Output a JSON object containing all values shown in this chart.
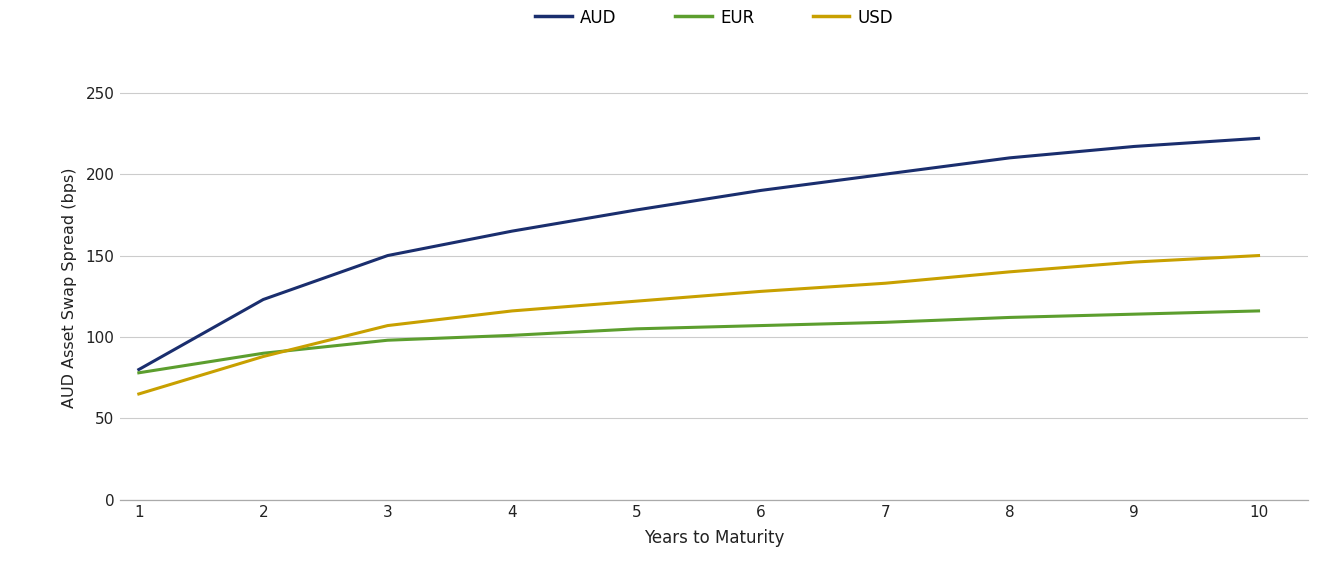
{
  "title": "",
  "xlabel": "Years to Maturity",
  "ylabel": "AUD Asset Swap Spread (bps)",
  "x": [
    1,
    2,
    3,
    4,
    5,
    6,
    7,
    8,
    9,
    10
  ],
  "AUD": [
    80,
    123,
    150,
    165,
    178,
    190,
    200,
    210,
    217,
    222
  ],
  "EUR": [
    78,
    90,
    98,
    101,
    105,
    107,
    109,
    112,
    114,
    116
  ],
  "USD": [
    65,
    88,
    107,
    116,
    122,
    128,
    133,
    140,
    146,
    150
  ],
  "colors": {
    "AUD": "#1a2e6e",
    "EUR": "#5c9e2e",
    "USD": "#c8a000"
  },
  "ylim": [
    0,
    260
  ],
  "xlim": [
    0.85,
    10.4
  ],
  "yticks": [
    0,
    50,
    100,
    150,
    200,
    250
  ],
  "xticks": [
    1,
    2,
    3,
    4,
    5,
    6,
    7,
    8,
    9,
    10
  ],
  "grid_color": "#cccccc",
  "background_color": "#ffffff",
  "line_width": 2.2
}
